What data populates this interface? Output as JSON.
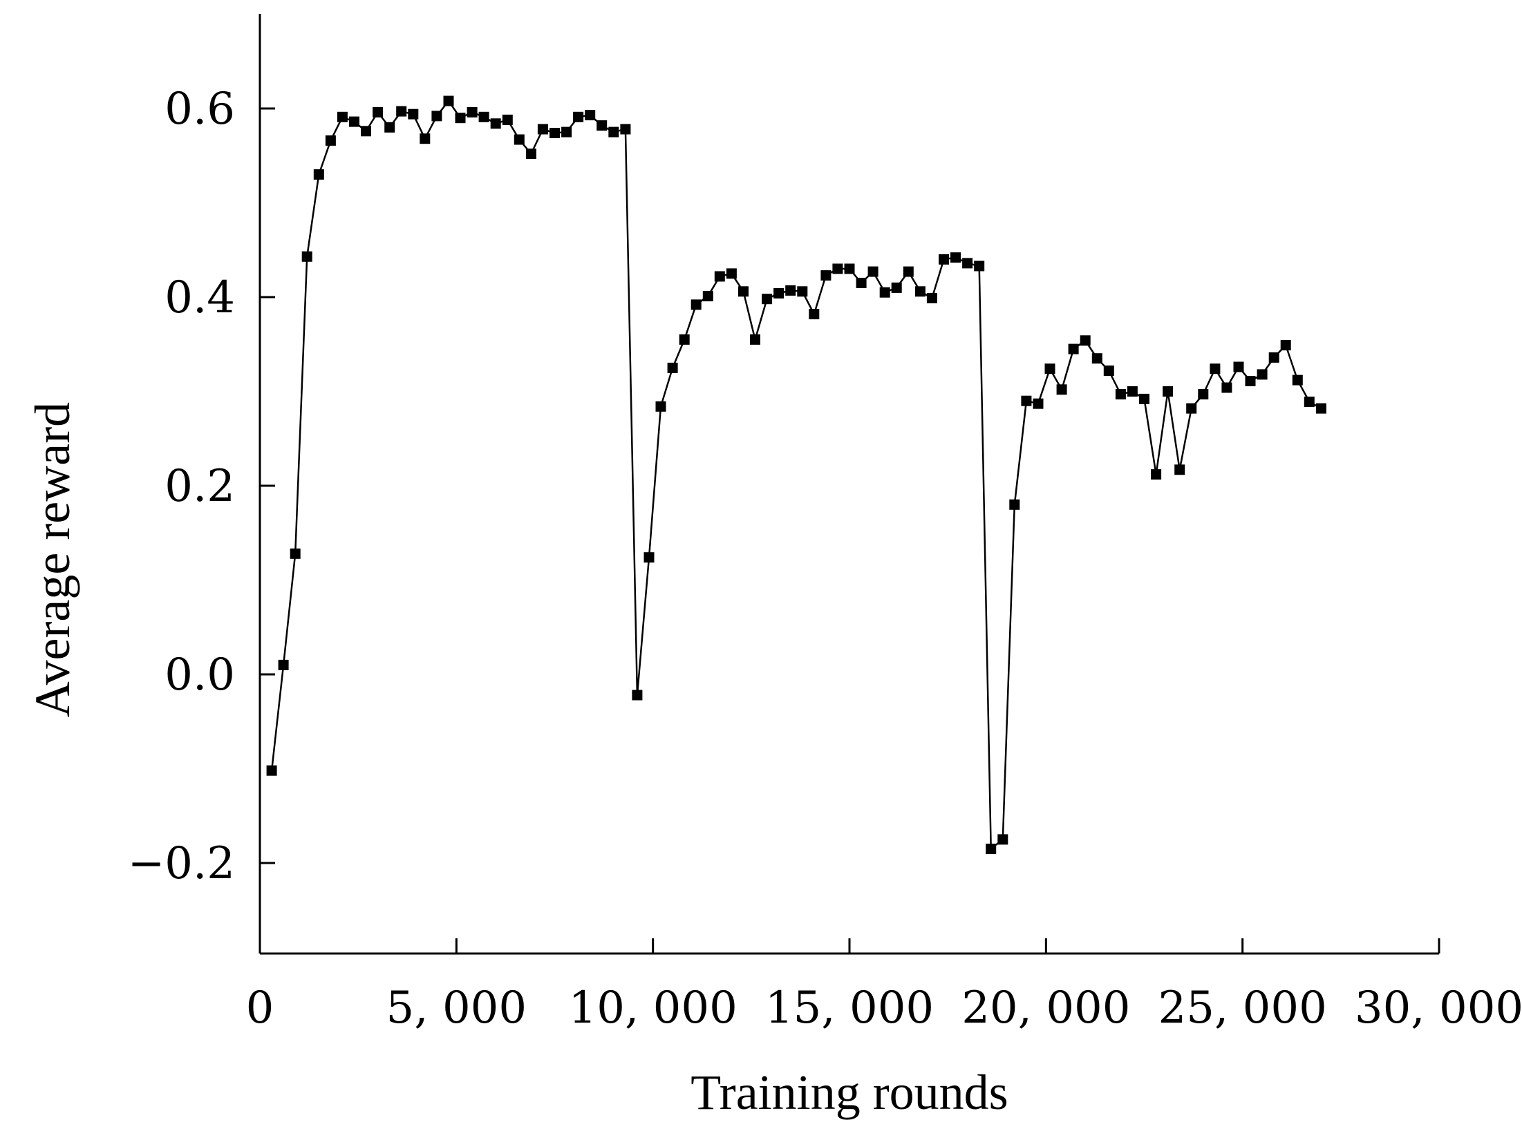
{
  "chart_data": {
    "type": "line",
    "title": "",
    "xlabel": "Training rounds",
    "ylabel": "Average reward",
    "xlim": [
      0,
      30000
    ],
    "ylim": [
      -0.3,
      0.7
    ],
    "xticks": [
      0,
      5000,
      10000,
      15000,
      20000,
      25000,
      30000
    ],
    "xtick_labels": [
      "0",
      "5, 000",
      "10, 000",
      "15, 000",
      "20, 000",
      "25, 000",
      "30, 000"
    ],
    "yticks": [
      -0.2,
      0.0,
      0.2,
      0.4,
      0.6
    ],
    "ytick_labels": [
      "−0.2",
      "0.0",
      "0.2",
      "0.4",
      "0.6"
    ],
    "grid": false,
    "legend": "none",
    "marker": "square",
    "color": "#000000",
    "series": [
      {
        "x": [
          300,
          600,
          900,
          1200,
          1500,
          1800,
          2100,
          2400,
          2700,
          3000,
          3300,
          3600,
          3900,
          4200,
          4500,
          4800,
          5100,
          5400,
          5700,
          6000,
          6300,
          6600,
          6900,
          7200,
          7500,
          7800,
          8100,
          8400,
          8700,
          9000,
          9300,
          9600,
          9900,
          10200,
          10500,
          10800,
          11100,
          11400,
          11700,
          12000,
          12300,
          12600,
          12900,
          13200,
          13500,
          13800,
          14100,
          14400,
          14700,
          15000,
          15300,
          15600,
          15900,
          16200,
          16500,
          16800,
          17100,
          17400,
          17700,
          18000,
          18300,
          18600,
          18900,
          19200,
          19500,
          19800,
          20100,
          20400,
          20700,
          21000,
          21300,
          21600,
          21900,
          22200,
          22500,
          22800,
          23100,
          23400,
          23700,
          24000,
          24300,
          24600,
          24900,
          25200,
          25500,
          25800,
          26100,
          26400,
          26700,
          27000
        ],
        "y": [
          -0.102,
          0.01,
          0.128,
          0.443,
          0.53,
          0.566,
          0.591,
          0.586,
          0.576,
          0.596,
          0.58,
          0.597,
          0.594,
          0.568,
          0.592,
          0.608,
          0.59,
          0.596,
          0.591,
          0.584,
          0.588,
          0.567,
          0.552,
          0.578,
          0.574,
          0.575,
          0.591,
          0.593,
          0.582,
          0.575,
          0.578,
          -0.022,
          0.124,
          0.284,
          0.325,
          0.355,
          0.392,
          0.401,
          0.422,
          0.425,
          0.406,
          0.355,
          0.398,
          0.404,
          0.407,
          0.406,
          0.382,
          0.423,
          0.43,
          0.43,
          0.415,
          0.427,
          0.405,
          0.41,
          0.427,
          0.406,
          0.399,
          0.44,
          0.442,
          0.436,
          0.433,
          -0.185,
          -0.175,
          0.18,
          0.29,
          0.287,
          0.324,
          0.302,
          0.345,
          0.354,
          0.335,
          0.322,
          0.297,
          0.3,
          0.292,
          0.212,
          0.3,
          0.217,
          0.282,
          0.297,
          0.324,
          0.304,
          0.326,
          0.311,
          0.318,
          0.336,
          0.349,
          0.312,
          0.289,
          0.282
        ]
      }
    ]
  }
}
